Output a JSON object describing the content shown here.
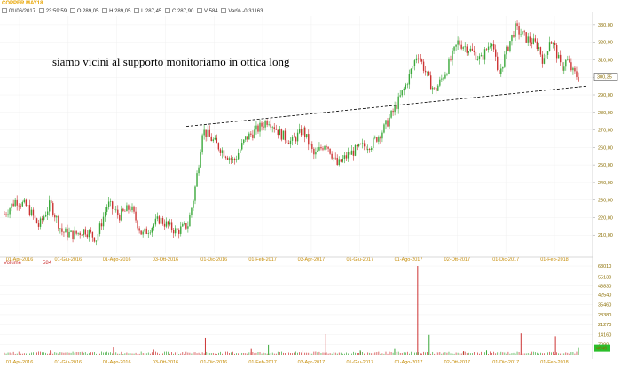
{
  "header": {
    "title": "COPPER MAY18",
    "date": "01/06/2017",
    "time": "23:59:59",
    "open": "O 289,05",
    "high": "H 289,05",
    "low": "L 287,45",
    "close": "C 287,90",
    "volume": "V 584",
    "var": "Var% -0,31163"
  },
  "annotation": "siamo vicini al supporto monitoriamo in ottica long",
  "volume_panel": {
    "label": "Volume",
    "value": "584"
  },
  "colors": {
    "up": "#3aa83a",
    "down": "#cc3333",
    "trendline": "#000000",
    "accent": "#e8a400",
    "grid": "#f0f0f0"
  },
  "chart_data": [
    {
      "type": "line",
      "title": "COPPER MAY18",
      "ylim": [
        200,
        335
      ],
      "yticks": [
        "330,00",
        "320,00",
        "310,00",
        "300,00",
        "290,00",
        "280,00",
        "270,00",
        "260,00",
        "250,00",
        "240,00",
        "230,00",
        "220,00",
        "210,00"
      ],
      "xticks": [
        "01-Apr-2016",
        "01-Giu-2016",
        "01-Ago-2016",
        "03-Ott-2016",
        "01-Dic-2016",
        "01-Feb-2017",
        "03-Apr-2017",
        "01-Giu-2017",
        "01-Ago-2017",
        "02-Ott-2017",
        "01-Dic-2017",
        "01-Feb-2018"
      ],
      "last_price_label": "300,35",
      "trendline": {
        "from_price": 272,
        "to_price": 295
      },
      "price_path": [
        {
          "x": 0.0,
          "y": 222
        },
        {
          "x": 0.02,
          "y": 230
        },
        {
          "x": 0.04,
          "y": 226
        },
        {
          "x": 0.06,
          "y": 215
        },
        {
          "x": 0.08,
          "y": 228
        },
        {
          "x": 0.1,
          "y": 212
        },
        {
          "x": 0.12,
          "y": 210
        },
        {
          "x": 0.14,
          "y": 213
        },
        {
          "x": 0.16,
          "y": 208
        },
        {
          "x": 0.18,
          "y": 228
        },
        {
          "x": 0.2,
          "y": 221
        },
        {
          "x": 0.22,
          "y": 226
        },
        {
          "x": 0.24,
          "y": 210
        },
        {
          "x": 0.27,
          "y": 219
        },
        {
          "x": 0.3,
          "y": 212
        },
        {
          "x": 0.32,
          "y": 216
        },
        {
          "x": 0.33,
          "y": 232
        },
        {
          "x": 0.34,
          "y": 255
        },
        {
          "x": 0.345,
          "y": 270
        },
        {
          "x": 0.36,
          "y": 265
        },
        {
          "x": 0.38,
          "y": 258
        },
        {
          "x": 0.4,
          "y": 252
        },
        {
          "x": 0.42,
          "y": 265
        },
        {
          "x": 0.44,
          "y": 270
        },
        {
          "x": 0.46,
          "y": 276
        },
        {
          "x": 0.48,
          "y": 268
        },
        {
          "x": 0.5,
          "y": 263
        },
        {
          "x": 0.52,
          "y": 270
        },
        {
          "x": 0.54,
          "y": 255
        },
        {
          "x": 0.56,
          "y": 263
        },
        {
          "x": 0.58,
          "y": 250
        },
        {
          "x": 0.6,
          "y": 256
        },
        {
          "x": 0.62,
          "y": 260
        },
        {
          "x": 0.64,
          "y": 262
        },
        {
          "x": 0.66,
          "y": 270
        },
        {
          "x": 0.68,
          "y": 282
        },
        {
          "x": 0.7,
          "y": 296
        },
        {
          "x": 0.72,
          "y": 314
        },
        {
          "x": 0.74,
          "y": 298
        },
        {
          "x": 0.75,
          "y": 292
        },
        {
          "x": 0.77,
          "y": 304
        },
        {
          "x": 0.79,
          "y": 320
        },
        {
          "x": 0.81,
          "y": 316
        },
        {
          "x": 0.83,
          "y": 310
        },
        {
          "x": 0.85,
          "y": 322
        },
        {
          "x": 0.86,
          "y": 300
        },
        {
          "x": 0.88,
          "y": 320
        },
        {
          "x": 0.89,
          "y": 328
        },
        {
          "x": 0.91,
          "y": 322
        },
        {
          "x": 0.93,
          "y": 318
        },
        {
          "x": 0.94,
          "y": 308
        },
        {
          "x": 0.95,
          "y": 322
        },
        {
          "x": 0.96,
          "y": 316
        },
        {
          "x": 0.97,
          "y": 305
        },
        {
          "x": 0.98,
          "y": 310
        },
        {
          "x": 0.99,
          "y": 303
        },
        {
          "x": 1.0,
          "y": 300
        }
      ]
    },
    {
      "type": "bar",
      "title": "Volume",
      "yticks": [
        "63010",
        "55130",
        "48830",
        "42540",
        "35460",
        "28380",
        "21270",
        "14160",
        "7090"
      ],
      "last_value_label": "4646",
      "ylim": [
        0,
        63010
      ],
      "spikes": [
        {
          "x": 0.08,
          "v": 3000,
          "dir": "down"
        },
        {
          "x": 0.19,
          "v": 5000,
          "dir": "down"
        },
        {
          "x": 0.26,
          "v": 3500,
          "dir": "down"
        },
        {
          "x": 0.35,
          "v": 12000,
          "dir": "down"
        },
        {
          "x": 0.43,
          "v": 4000,
          "dir": "down"
        },
        {
          "x": 0.46,
          "v": 7000,
          "dir": "up"
        },
        {
          "x": 0.52,
          "v": 3000,
          "dir": "down"
        },
        {
          "x": 0.56,
          "v": 14500,
          "dir": "down"
        },
        {
          "x": 0.62,
          "v": 3000,
          "dir": "up"
        },
        {
          "x": 0.68,
          "v": 4000,
          "dir": "up"
        },
        {
          "x": 0.72,
          "v": 63000,
          "dir": "down"
        },
        {
          "x": 0.74,
          "v": 14000,
          "dir": "up"
        },
        {
          "x": 0.8,
          "v": 2500,
          "dir": "down"
        },
        {
          "x": 0.84,
          "v": 3000,
          "dir": "up"
        },
        {
          "x": 0.9,
          "v": 15000,
          "dir": "down"
        },
        {
          "x": 0.96,
          "v": 13000,
          "dir": "down"
        },
        {
          "x": 1.0,
          "v": 4646,
          "dir": "up"
        }
      ]
    }
  ]
}
